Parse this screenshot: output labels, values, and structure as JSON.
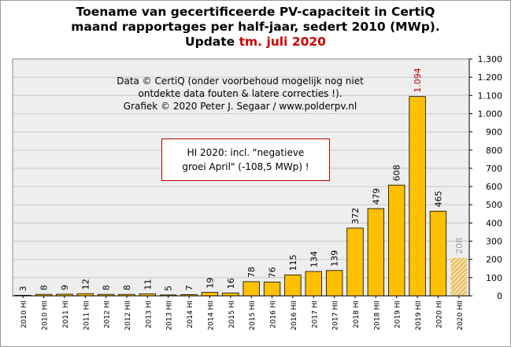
{
  "title": {
    "line1": "Toename van gecertificeerde PV-capaciteit in CertiQ",
    "line2": "maand rapportages per half-jaar, sedert 2010 (MWp).",
    "line3_prefix": "Update",
    "line3_highlight": "tm. juli 2020"
  },
  "credit": {
    "line1": "Data © CertiQ (onder voorbehoud mogelijk nog niet",
    "line2": "ontdekte data fouten & latere correcties !).",
    "line3": "Grafiek © 2020 Peter J. Segaar / www.polderpv.nl"
  },
  "note": {
    "line1": "HI 2020: incl. \"negatieve",
    "line2": "groei April\" (-108,5 MWp) !"
  },
  "chart_data": {
    "type": "bar",
    "categories": [
      "2010 HI",
      "2010 HII",
      "2011 HI",
      "2011 HII",
      "2012 HI",
      "2012 HII",
      "2013 HI",
      "2013 HII",
      "2014 HI",
      "2014 HII",
      "2015 HI",
      "2015 HII",
      "2016 HI",
      "2016 HII",
      "2017 HI",
      "2017 HII",
      "2018 HI",
      "2018 HII",
      "2019 HI",
      "2019 HII",
      "2020 HI",
      "2020 HII"
    ],
    "values": [
      3,
      8,
      9,
      12,
      8,
      8,
      11,
      5,
      7,
      19,
      16,
      78,
      76,
      115,
      134,
      139,
      372,
      479,
      608,
      1094,
      465,
      208
    ],
    "value_labels": [
      "3",
      "8",
      "9",
      "12",
      "8",
      "8",
      "11",
      "5",
      "7",
      "19",
      "16",
      "78",
      "76",
      "115",
      "134",
      "139",
      "372",
      "479",
      "608",
      "1.094",
      "465",
      "208"
    ],
    "highlight_index": 19,
    "partial_index": 21,
    "ylim": [
      0,
      1300
    ],
    "yticks": [
      0,
      100,
      200,
      300,
      400,
      500,
      600,
      700,
      800,
      900,
      1000,
      1100,
      1200,
      1300
    ],
    "ytick_labels": [
      "0",
      "100",
      "200",
      "300",
      "400",
      "500",
      "600",
      "700",
      "800",
      "900",
      "1.000",
      "1.100",
      "1.200",
      "1.300"
    ],
    "y_axis_side": "right",
    "grid": true,
    "colors": {
      "bar": "#ffc000",
      "bar_edge": "#000000",
      "partial_bar": "#e6b652",
      "partial_label": "#a0a0a0",
      "highlight_label": "#c00000",
      "plot_bg": "#eeeeee",
      "grid": "#c8c8c8"
    }
  }
}
